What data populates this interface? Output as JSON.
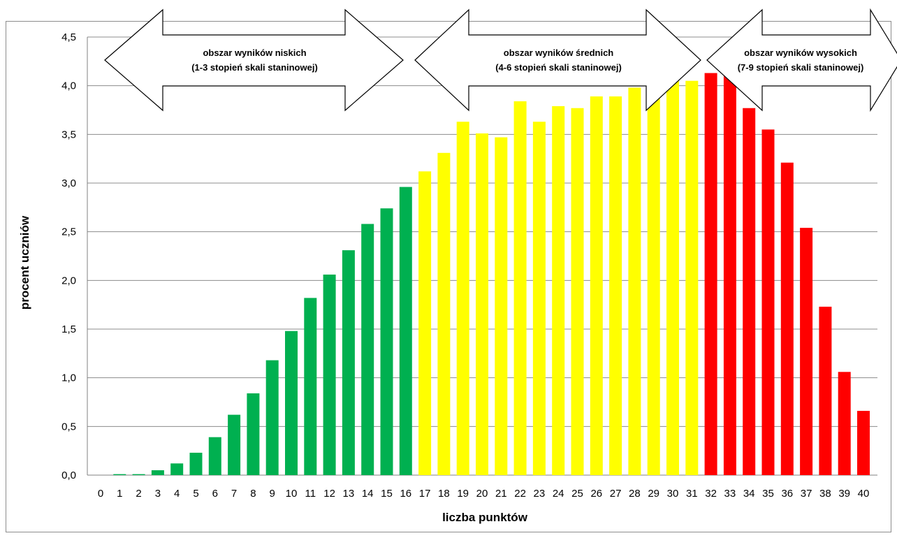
{
  "chart_data": {
    "type": "bar",
    "xlabel": "liczba punktów",
    "ylabel": "procent uczniów",
    "ylim": [
      0,
      4.5
    ],
    "yticks": [
      "0,0",
      "0,5",
      "1,0",
      "1,5",
      "2,0",
      "2,5",
      "3,0",
      "3,5",
      "4,0",
      "4,5"
    ],
    "grid": true,
    "categories": [
      "0",
      "1",
      "2",
      "3",
      "4",
      "5",
      "6",
      "7",
      "8",
      "9",
      "10",
      "11",
      "12",
      "13",
      "14",
      "15",
      "16",
      "17",
      "18",
      "19",
      "20",
      "21",
      "22",
      "23",
      "24",
      "25",
      "26",
      "27",
      "28",
      "29",
      "30",
      "31",
      "32",
      "33",
      "34",
      "35",
      "36",
      "37",
      "38",
      "39",
      "40"
    ],
    "values": [
      0.0,
      0.01,
      0.01,
      0.05,
      0.12,
      0.23,
      0.39,
      0.62,
      0.84,
      1.18,
      1.48,
      1.82,
      2.06,
      2.31,
      2.58,
      2.74,
      2.96,
      3.12,
      3.31,
      3.63,
      3.51,
      3.47,
      3.84,
      3.63,
      3.79,
      3.77,
      3.89,
      3.89,
      3.98,
      4.08,
      4.05,
      4.05,
      4.13,
      4.14,
      3.77,
      3.55,
      3.21,
      2.54,
      1.73,
      1.06,
      0.66
    ],
    "groups": [
      {
        "range": [
          0,
          16
        ],
        "color": "#00b050",
        "label_line1": "obszar wyników niskich",
        "label_line2": "(1-3 stopień skali staninowej)"
      },
      {
        "range": [
          17,
          31
        ],
        "color": "#ffff00",
        "label_line1": "obszar wyników średnich",
        "label_line2": "(4-6 stopień skali staninowej)"
      },
      {
        "range": [
          32,
          40
        ],
        "color": "#ff0000",
        "label_line1": "obszar wyników wysokich",
        "label_line2": "(7-9 stopień skali staninowej)"
      }
    ]
  }
}
